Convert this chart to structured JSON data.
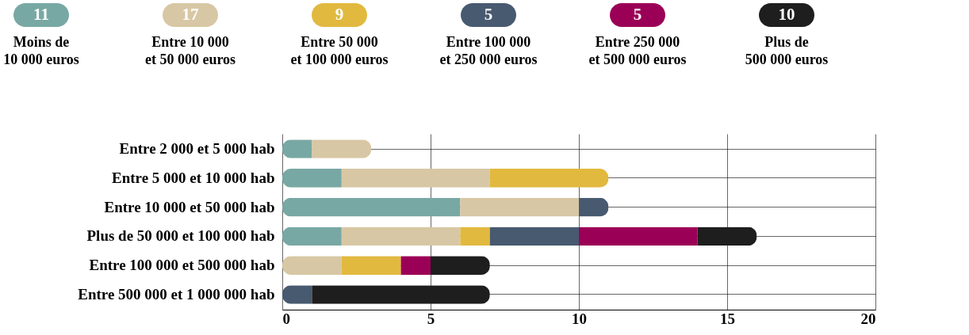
{
  "chart_data": {
    "type": "bar",
    "orientation": "horizontal",
    "stacked": true,
    "legend": "top",
    "grid": true,
    "categories": [
      "Entre 2 000 et 5 000 hab",
      "Entre 5 000 et 10 000 hab",
      "Entre 10 000 et 50 000 hab",
      "Plus de 50 000 et 100 000 hab",
      "Entre 100 000 et 500 000 hab",
      "Entre 500 000 et 1 000 000 hab"
    ],
    "series": [
      {
        "name": "Moins de 10 000 euros",
        "color": "#78a8a4",
        "values": [
          1,
          2,
          6,
          2,
          0,
          0
        ]
      },
      {
        "name": "Entre 10 000 et 50 000 euros",
        "color": "#d8c7a4",
        "values": [
          2,
          5,
          4,
          4,
          2,
          0
        ]
      },
      {
        "name": "Entre 50 000 et 100 000 euros",
        "color": "#e2b93f",
        "values": [
          0,
          4,
          0,
          1,
          2,
          0
        ]
      },
      {
        "name": "Entre 100 000 et 250 000 euros",
        "color": "#475a70",
        "values": [
          0,
          0,
          1,
          3,
          0,
          1
        ]
      },
      {
        "name": "Entre 250 000 et 500 000 euros",
        "color": "#9b0057",
        "values": [
          0,
          0,
          0,
          4,
          1,
          0
        ]
      },
      {
        "name": "Plus de 500 000 euros",
        "color": "#1e1e1e",
        "values": [
          0,
          0,
          0,
          2,
          2,
          6
        ]
      }
    ],
    "annotations": [
      "11",
      "17",
      "9",
      "5",
      "5",
      "10"
    ],
    "xlim": [
      0,
      20
    ],
    "xticks": [
      0,
      5,
      10,
      15,
      20
    ]
  }
}
